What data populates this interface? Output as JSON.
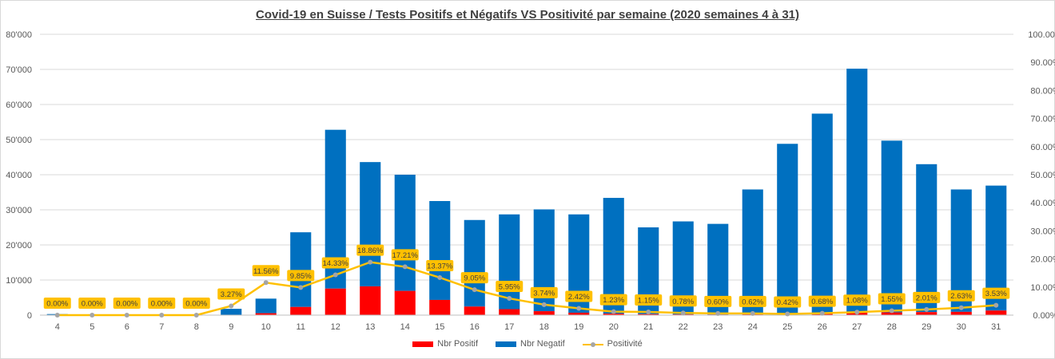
{
  "colors": {
    "positive": "#ff0000",
    "negative": "#0070c0",
    "line": "#ffc000",
    "marker": "#a5a5a5",
    "grid": "#d9d9d9"
  },
  "chart_data": {
    "type": "bar",
    "title": "Covid-19 en Suisse / Tests Positifs et Négatifs VS Positivité par semaine (2020 semaines 4 à 31)",
    "xlabel": "",
    "ylabel": "",
    "categories": [
      "4",
      "5",
      "6",
      "7",
      "8",
      "9",
      "10",
      "11",
      "12",
      "13",
      "14",
      "15",
      "16",
      "17",
      "18",
      "19",
      "20",
      "21",
      "22",
      "23",
      "24",
      "25",
      "26",
      "27",
      "28",
      "29",
      "30",
      "31"
    ],
    "stacked": true,
    "ylim": [
      0,
      80000
    ],
    "y_ticks": [
      "0",
      "10'000",
      "20'000",
      "30'000",
      "40'000",
      "50'000",
      "60'000",
      "70'000",
      "80'000"
    ],
    "y2lim": [
      0,
      100
    ],
    "y2_ticks": [
      "0.00%",
      "10.00%",
      "20.00%",
      "30.00%",
      "40.00%",
      "50.00%",
      "60.00%",
      "70.00%",
      "80.00%",
      "90.00%",
      "100.00%"
    ],
    "series": [
      {
        "name": "Nbr Positif",
        "type": "bar",
        "values": [
          0,
          0,
          0,
          0,
          0,
          60,
          540,
          2330,
          7560,
          8200,
          6900,
          4330,
          2440,
          1700,
          1120,
          690,
          410,
          290,
          210,
          156,
          220,
          205,
          390,
          760,
          780,
          870,
          940,
          1310
        ]
      },
      {
        "name": "Nbr Negatif",
        "type": "bar",
        "values": [
          300,
          0,
          0,
          0,
          0,
          1740,
          4160,
          21270,
          45240,
          35400,
          33100,
          28170,
          24660,
          27000,
          29000,
          28010,
          32990,
          24710,
          26490,
          25840,
          35580,
          48595,
          57010,
          69440,
          48920,
          42130,
          34860,
          35590
        ]
      },
      {
        "name": "Positivité",
        "type": "line",
        "axis": "right",
        "values": [
          0,
          0,
          0,
          0,
          0,
          3.27,
          11.56,
          9.85,
          14.33,
          18.86,
          17.21,
          13.37,
          9.05,
          5.95,
          3.74,
          2.42,
          1.23,
          1.15,
          0.78,
          0.6,
          0.62,
          0.42,
          0.68,
          1.08,
          1.55,
          2.01,
          2.63,
          3.53
        ]
      }
    ],
    "data_labels": [
      "0.00%",
      "0.00%",
      "0.00%",
      "0.00%",
      "0.00%",
      "3.27%",
      "11.56%",
      "9.85%",
      "14.33%",
      "18.86%",
      "17.21%",
      "13.37%",
      "9.05%",
      "5.95%",
      "3.74%",
      "2.42%",
      "1.23%",
      "1.15%",
      "0.78%",
      "0.60%",
      "0.62%",
      "0.42%",
      "0.68%",
      "1.08%",
      "1.55%",
      "2.01%",
      "2.63%",
      "3.53%"
    ],
    "grid": true,
    "legend_position": "bottom"
  }
}
